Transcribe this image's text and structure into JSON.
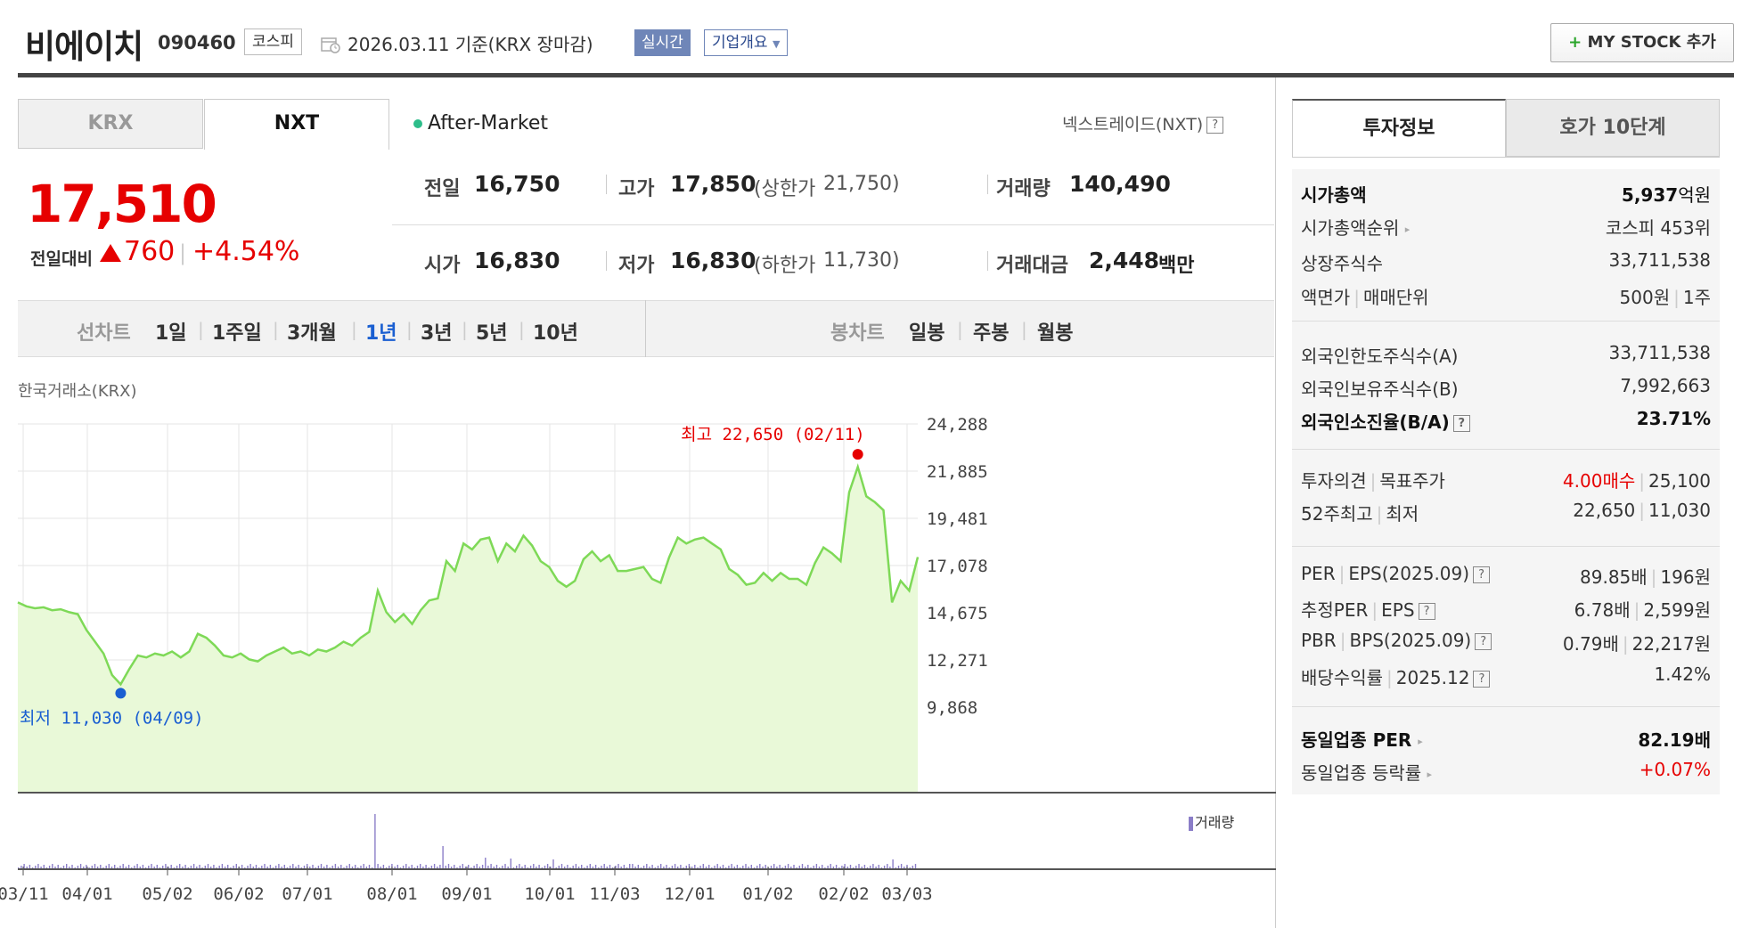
{
  "header": {
    "name": "비에이치",
    "code": "090460",
    "market": "코스피",
    "date": "2026.03.11 기준(KRX 장마감)",
    "realtime": "실시간",
    "overview": "기업개요",
    "mystock": "MY STOCK 추가"
  },
  "tabs": {
    "krx": "KRX",
    "nxt": "NXT"
  },
  "after_market": "After-Market",
  "nxt_link": "넥스트레이드(NXT)",
  "price": {
    "current": "17,510",
    "change_label": "전일대비",
    "change": "760",
    "change_pct": "+4.54%"
  },
  "stats": {
    "prev_label": "전일",
    "prev": "16,750",
    "high_label": "고가",
    "high": "17,850",
    "upper_label": "(상한가",
    "upper": "21,750)",
    "vol_label": "거래량",
    "vol": "140,490",
    "open_label": "시가",
    "open": "16,830",
    "low_label": "저가",
    "low": "16,830",
    "lower_label": "(하한가",
    "lower": "11,730)",
    "amt_label": "거래대금",
    "amt": "2,448",
    "amt_unit": "백만"
  },
  "period": {
    "line_label": "선차트",
    "line": [
      "1일",
      "1주일",
      "3개월",
      "1년",
      "3년",
      "5년",
      "10년"
    ],
    "candle_label": "봉차트",
    "candle": [
      "일봉",
      "주봉",
      "월봉"
    ]
  },
  "exchange_label": "한국거래소(KRX)",
  "chart_data": {
    "type": "area",
    "y_ticks": [
      "24,288",
      "21,885",
      "19,481",
      "17,078",
      "14,675",
      "12,271",
      "9,868"
    ],
    "ylim": [
      9868,
      24288
    ],
    "x_ticks": [
      "03/11",
      "04/01",
      "05/02",
      "06/02",
      "07/01",
      "08/01",
      "09/01",
      "10/01",
      "11/03",
      "12/01",
      "01/02",
      "02/02",
      "03/03"
    ],
    "max_label": "최고 22,650 (02/11)",
    "min_label": "최저 11,030 (04/09)",
    "volume_label": "거래량",
    "series": [
      {
        "values": [
          15200,
          15000,
          14900,
          14950,
          14800,
          14850,
          14700,
          14600,
          13800,
          13200,
          12600,
          11500,
          11030,
          11800,
          12500,
          12400,
          12600,
          12500,
          12700,
          12400,
          12700,
          13600,
          13400,
          13000,
          12500,
          12400,
          12600,
          12300,
          12200,
          12500,
          12700,
          12900,
          12600,
          12700,
          12500,
          12800,
          12700,
          12900,
          13200,
          13000,
          13400,
          13700,
          15800,
          14700,
          14200,
          14600,
          14100,
          14800,
          15300,
          15400,
          17300,
          16800,
          18200,
          17900,
          18400,
          18500,
          17300,
          18200,
          17800,
          18600,
          18100,
          17300,
          17000,
          16300,
          16000,
          16300,
          17400,
          17800,
          17300,
          17600,
          16800,
          16800,
          16900,
          17000,
          16400,
          16200,
          17500,
          18500,
          18200,
          18400,
          18500,
          18200,
          17900,
          16900,
          16600,
          16100,
          16200,
          16700,
          16300,
          16700,
          16400,
          16400,
          16100,
          17200,
          18000,
          17700,
          17300,
          20800,
          22100,
          20600,
          20300,
          19900,
          15200,
          16300,
          15800,
          17510
        ]
      }
    ]
  },
  "right": {
    "tab_info": "투자정보",
    "tab_hoga": "호가 10단계",
    "rows": [
      {
        "k": "시가총액",
        "v": "5,937",
        "vu": "억원"
      },
      {
        "k": "시가총액순위",
        "v": "코스피 453위"
      },
      {
        "k": "상장주식수",
        "v": "33,711,538"
      },
      {
        "k1": "액면가",
        "k2": "매매단위",
        "v1": "500원",
        "v2": "1주"
      },
      {
        "k": "외국인한도주식수(A)",
        "v": "33,711,538"
      },
      {
        "k": "외국인보유주식수(B)",
        "v": "7,992,663"
      },
      {
        "k": "외국인소진율(B/A)",
        "v": "23.71%"
      },
      {
        "k1": "투자의견",
        "k2": "목표주가",
        "v1": "4.00매수",
        "v2": "25,100"
      },
      {
        "k1": "52주최고",
        "k2": "최저",
        "v1": "22,650",
        "v2": "11,030"
      },
      {
        "k1": "PER",
        "k2": "EPS(2025.09)",
        "v1": "89.85배",
        "v2": "196원"
      },
      {
        "k1": "추정PER",
        "k2": "EPS",
        "v1": "6.78배",
        "v2": "2,599원"
      },
      {
        "k1": "PBR",
        "k2": "BPS(2025.09)",
        "v1": "0.79배",
        "v2": "22,217원"
      },
      {
        "k1": "배당수익률",
        "k2": "2025.12",
        "v": "1.42%"
      },
      {
        "k": "동일업종 PER",
        "v": "82.19배"
      },
      {
        "k": "동일업종 등락률",
        "v": "+0.07%"
      }
    ]
  },
  "colors": {
    "up": "#e60000",
    "down": "#1a5fd1",
    "line": "#7ed957",
    "fill": "#e9f9d8"
  }
}
